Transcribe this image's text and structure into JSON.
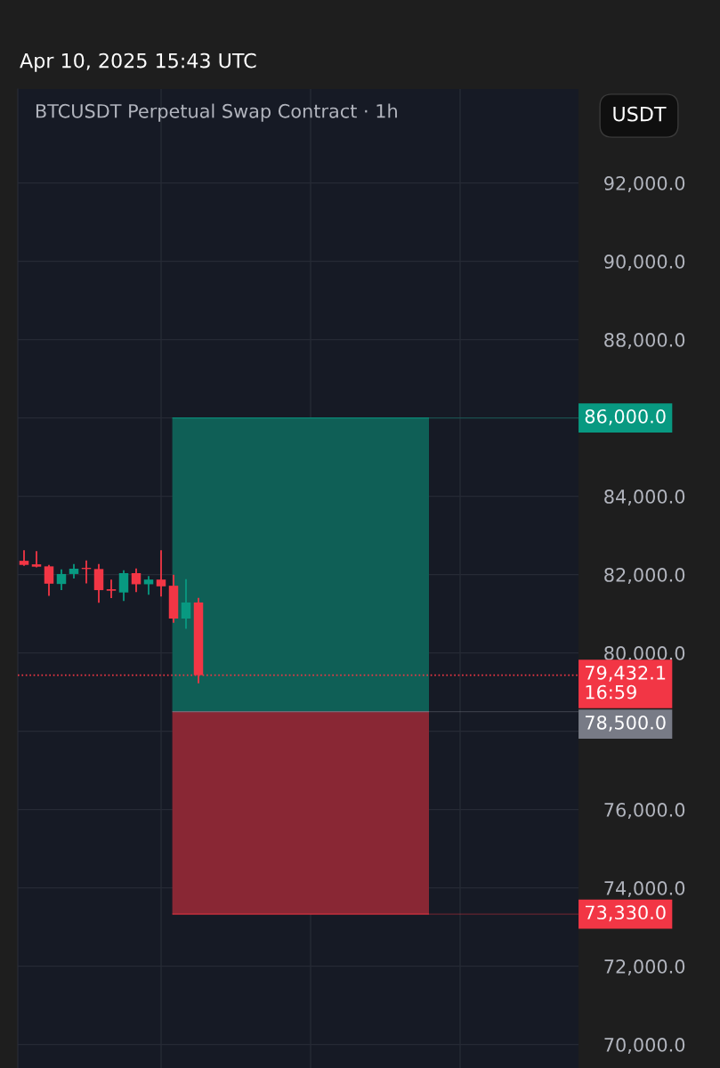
{
  "chart_data": {
    "type": "candlestick",
    "title": "BTCUSDT Perpetual Swap Contract · 1h",
    "annotations": [
      "Apr 10, 2025 15:43 UTC",
      "USDT"
    ],
    "categories": [
      null,
      null,
      null,
      null,
      null,
      null,
      null,
      null,
      null,
      null,
      null,
      null,
      null,
      null,
      null,
      null,
      null,
      null,
      null,
      null,
      null,
      null,
      null,
      null,
      null,
      null,
      null,
      null,
      null,
      null,
      null,
      null,
      null,
      null,
      null,
      null,
      null,
      null,
      null,
      null,
      null,
      null,
      null,
      null,
      null
    ],
    "ohlc": [
      [
        82352,
        82599,
        82247,
        82247
      ],
      [
        82262,
        82577,
        82202,
        82202
      ],
      [
        82210,
        82225,
        81476,
        81768
      ],
      [
        81760,
        82112,
        81625,
        82015
      ],
      [
        82015,
        82247,
        81918,
        82150
      ],
      [
        82172,
        82337,
        81798,
        82142
      ],
      [
        82142,
        82247,
        81303,
        81603
      ],
      [
        81626,
        81850,
        81423,
        81588
      ],
      [
        81543,
        82090,
        81348,
        82037
      ],
      [
        82037,
        82135,
        81573,
        81753
      ],
      [
        81753,
        81940,
        81506,
        81873
      ],
      [
        81873,
        82599,
        81461,
        81700
      ],
      [
        81715,
        81978,
        80787,
        80877
      ],
      [
        80877,
        81865,
        80637,
        81288
      ],
      [
        81288,
        81386,
        79244,
        79432.1
      ],
      null,
      null,
      null,
      null,
      null,
      null,
      null,
      null,
      null,
      null,
      null,
      null,
      null,
      null,
      null,
      null,
      null,
      null,
      null,
      null,
      null,
      null,
      null,
      null,
      null,
      null,
      null,
      null,
      null,
      null
    ],
    "colors": [
      "#f23645",
      "#f23645",
      "#f23645",
      "#089981",
      "#089981",
      "#f23645",
      "#f23645",
      "#f23645",
      "#089981",
      "#f23645",
      "#089981",
      "#f23645",
      "#f23645",
      "#089981",
      "#f23645",
      null,
      null,
      null,
      null,
      null,
      null,
      null,
      null,
      null,
      null,
      null,
      null,
      null,
      null,
      null,
      null,
      null,
      null,
      null,
      null,
      null,
      null,
      null,
      null,
      null,
      null,
      null,
      null,
      null,
      null
    ],
    "ylim": [
      69400,
      94400
    ],
    "yticks": [
      {
        "value": 70000,
        "label": "70,000.0"
      },
      {
        "value": 72000,
        "label": "72,000.0"
      },
      {
        "value": 74000,
        "label": "74,000.0"
      },
      {
        "value": 76000,
        "label": "76,000.0"
      },
      {
        "value": 78000,
        "label": null
      },
      {
        "value": 80000,
        "label": "80,000.0"
      },
      {
        "value": 82000,
        "label": "82,000.0"
      },
      {
        "value": 84000,
        "label": "84,000.0"
      },
      {
        "value": 86000,
        "label": null
      },
      {
        "value": 88000,
        "label": "88,000.0"
      },
      {
        "value": 90000,
        "label": "90,000.0"
      },
      {
        "value": 92000,
        "label": "92,000.0"
      }
    ],
    "grid": true,
    "bands": [
      {
        "axis": "y",
        "from": 78500,
        "to": 86000,
        "color": "#0f5f56"
      },
      {
        "axis": "y",
        "from": 73330,
        "to": 78500,
        "color": "#892734"
      }
    ],
    "ref_lines": [
      {
        "axis": "y",
        "value": 79432.1,
        "label": "79,432.1\n16:59",
        "color": "#f23645",
        "line_style": "dotted"
      },
      {
        "axis": "y",
        "value": 86000,
        "label": "86,000.0",
        "color": "#089981",
        "line_style": "solid"
      },
      {
        "axis": "y",
        "value": 78500,
        "label": "78,500.0",
        "color": "#787b86",
        "line_style": "solid"
      },
      {
        "axis": "y",
        "value": 73330,
        "label": "73,330.0",
        "color": "#f23645",
        "line_style": "solid"
      }
    ]
  }
}
